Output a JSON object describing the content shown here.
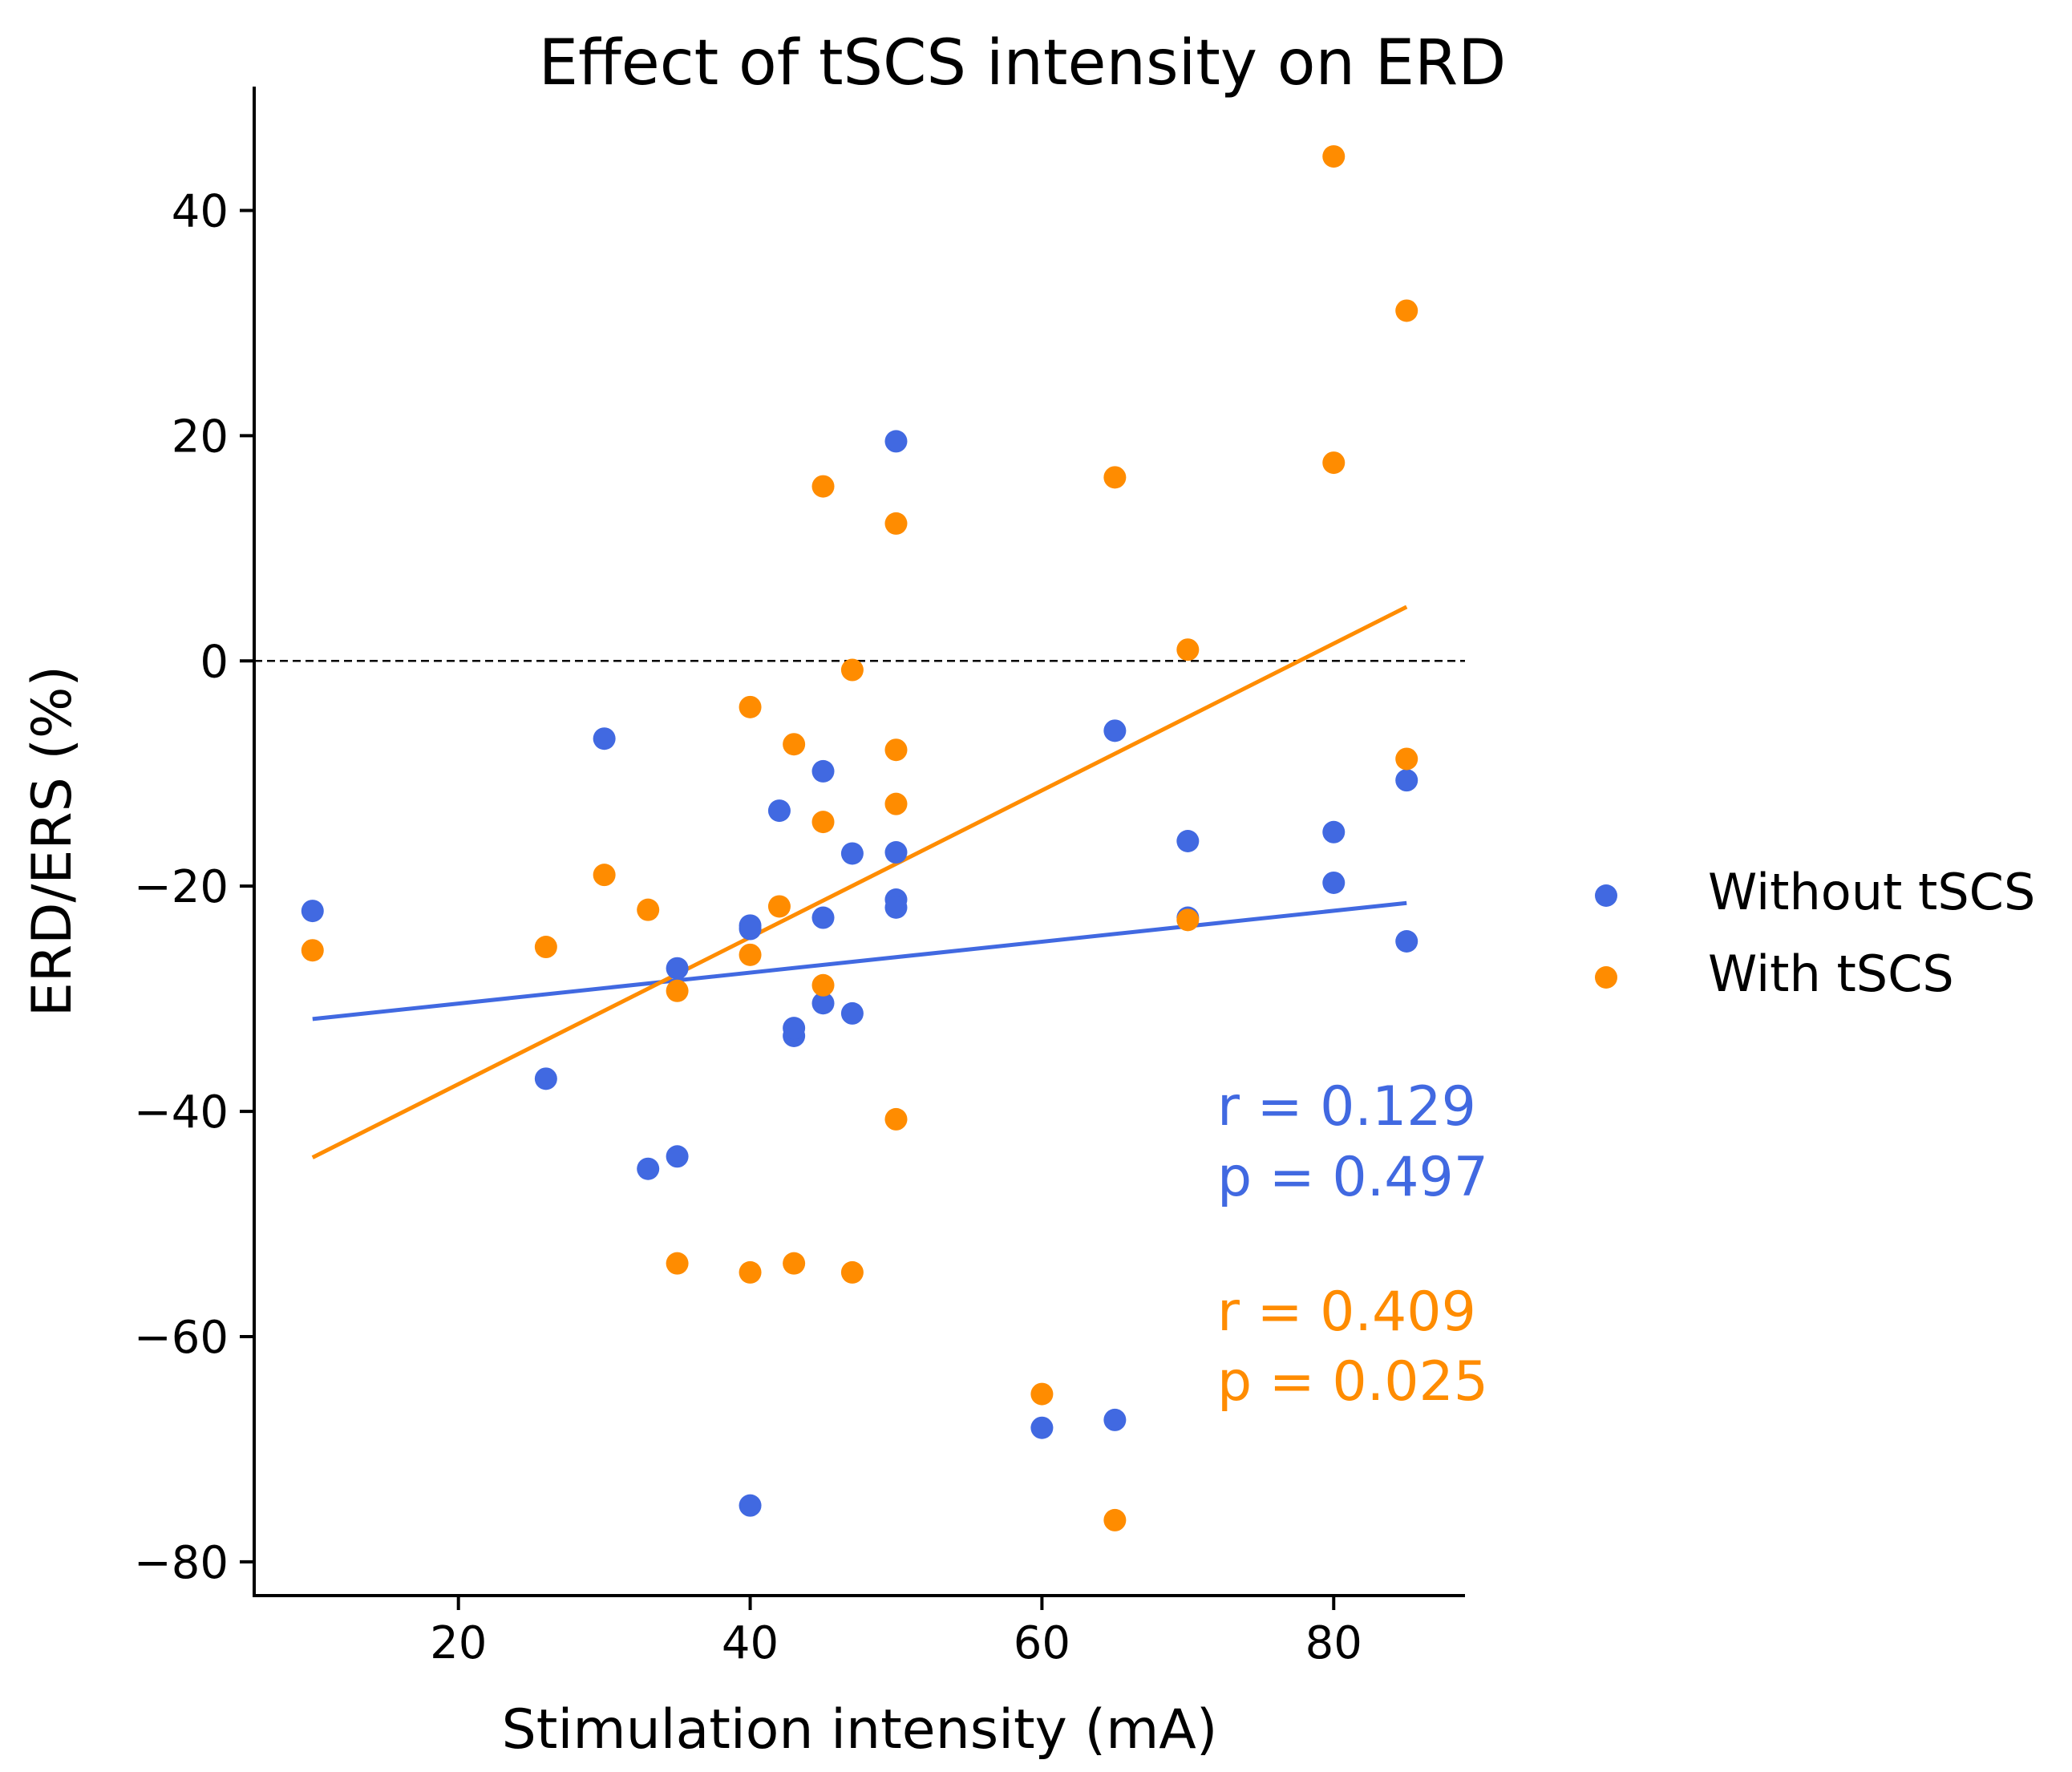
{
  "chart_data": {
    "type": "scatter",
    "title": "Effect of tSCS intensity on ERD",
    "xlabel": "Stimulation intensity (mA)",
    "ylabel": "ERD/ERS (%)",
    "xlim": [
      6,
      89
    ],
    "ylim": [
      -83,
      51
    ],
    "xticks": [
      20,
      40,
      60,
      80
    ],
    "yticks": [
      40,
      20,
      0,
      -20,
      -40,
      -60,
      -80
    ],
    "xtick_labels": [
      "20",
      "40",
      "60",
      "80"
    ],
    "ytick_labels": [
      "40",
      "20",
      "0",
      "−20",
      "−40",
      "−60",
      "−80"
    ],
    "grid": false,
    "reference_line": {
      "y": 0,
      "style": "dashed"
    },
    "legend_position": "center-right",
    "series": [
      {
        "name": "Without tSCS",
        "color": "#4169e1",
        "x": [
          10,
          26,
          30,
          33,
          35,
          35,
          40,
          40,
          40,
          42,
          43,
          43,
          45,
          45,
          45,
          47,
          47,
          50,
          50,
          50,
          50,
          60,
          65,
          65,
          70,
          70,
          80,
          80,
          85,
          85
        ],
        "y": [
          -22.2,
          -37.1,
          -6.9,
          -45.1,
          -44.0,
          -27.3,
          -23.8,
          -23.5,
          -75.0,
          -13.3,
          -33.3,
          -32.6,
          -9.8,
          -22.8,
          -30.4,
          -17.1,
          -31.3,
          19.5,
          -17.0,
          -21.2,
          -21.9,
          -68.1,
          -6.2,
          -67.4,
          -16.0,
          -22.8,
          -15.2,
          -19.7,
          -10.6,
          -24.9
        ],
        "fit": {
          "x": [
            10,
            85
          ],
          "y": [
            -31.8,
            -21.5
          ]
        },
        "stats": {
          "r": "r = 0.129",
          "p": "p = 0.497"
        }
      },
      {
        "name": "With tSCS",
        "color": "#ff8c00",
        "x": [
          10,
          26,
          30,
          33,
          35,
          35,
          40,
          40,
          40,
          42,
          43,
          43,
          45,
          45,
          45,
          47,
          47,
          50,
          50,
          50,
          50,
          60,
          65,
          65,
          70,
          70,
          80,
          80,
          85,
          85
        ],
        "y": [
          -25.7,
          -25.4,
          -19.0,
          -22.1,
          -29.3,
          -53.5,
          -4.1,
          -26.1,
          -54.3,
          -21.8,
          -7.4,
          -53.5,
          15.5,
          -14.3,
          -28.8,
          -0.8,
          -54.3,
          12.2,
          -7.9,
          -12.7,
          -40.7,
          -65.1,
          16.3,
          -76.3,
          1.0,
          -23.0,
          44.8,
          17.6,
          31.1,
          -8.7
        ],
        "fit": {
          "x": [
            10,
            85
          ],
          "y": [
            -44.1,
            4.8
          ]
        },
        "stats": {
          "r": "r = 0.409",
          "p": "p = 0.025"
        }
      }
    ]
  }
}
